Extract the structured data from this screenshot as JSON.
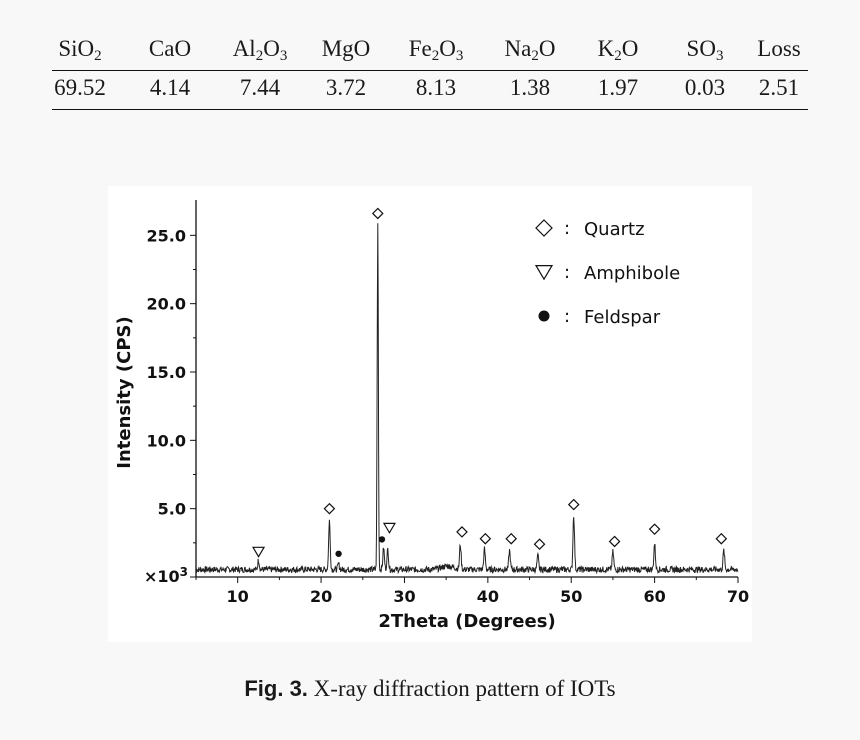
{
  "table": {
    "columns": [
      {
        "base": "SiO",
        "sub1": "2",
        "mid": "",
        "sub2": ""
      },
      {
        "base": "CaO",
        "sub1": "",
        "mid": "",
        "sub2": ""
      },
      {
        "base": "Al",
        "sub1": "2",
        "mid": "O",
        "sub2": "3"
      },
      {
        "base": "MgO",
        "sub1": "",
        "mid": "",
        "sub2": ""
      },
      {
        "base": "Fe",
        "sub1": "2",
        "mid": "O",
        "sub2": "3"
      },
      {
        "base": "Na",
        "sub1": "2",
        "mid": "O",
        "sub2": ""
      },
      {
        "base": "K",
        "sub1": "2",
        "mid": "O",
        "sub2": ""
      },
      {
        "base": "SO",
        "sub1": "3",
        "mid": "",
        "sub2": ""
      },
      {
        "base": "Loss",
        "sub1": "",
        "mid": "",
        "sub2": ""
      }
    ],
    "values": [
      "69.52",
      "4.14",
      "7.44",
      "3.72",
      "8.13",
      "1.38",
      "1.97",
      "0.03",
      "2.51"
    ]
  },
  "chart_data": {
    "type": "line",
    "xlabel": "2Theta (Degrees)",
    "ylabel": "Intensity (CPS)",
    "y_multiplier_label": "×10",
    "y_multiplier_exp": "3",
    "xlim": [
      5,
      70
    ],
    "ylim": [
      0,
      27
    ],
    "x_ticks": [
      "10",
      "20",
      "30",
      "40",
      "50",
      "60",
      "70"
    ],
    "y_ticks": [
      "5.0",
      "10.0",
      "15.0",
      "20.0",
      "25.0"
    ],
    "legend": [
      {
        "symbol": "diamond",
        "label": "Quartz"
      },
      {
        "symbol": "triangle",
        "label": "Amphibole"
      },
      {
        "symbol": "circle",
        "label": "Feldspar"
      }
    ],
    "legend_separator": ":",
    "baseline": 0.5,
    "peaks": [
      {
        "x": 12.5,
        "y": 1.2,
        "phase": "Amphibole"
      },
      {
        "x": 21.0,
        "y": 4.1,
        "phase": "Quartz"
      },
      {
        "x": 22.1,
        "y": 0.9,
        "phase": "Feldspar"
      },
      {
        "x": 26.8,
        "y": 25.9,
        "phase": "Quartz"
      },
      {
        "x": 27.5,
        "y": 2.1,
        "phase": "Feldspar"
      },
      {
        "x": 28.0,
        "y": 2.0,
        "phase": "Amphibole"
      },
      {
        "x": 36.7,
        "y": 2.3,
        "phase": "Quartz"
      },
      {
        "x": 39.6,
        "y": 2.0,
        "phase": "Quartz"
      },
      {
        "x": 42.6,
        "y": 1.9,
        "phase": "Quartz"
      },
      {
        "x": 46.0,
        "y": 1.5,
        "phase": "Quartz"
      },
      {
        "x": 50.3,
        "y": 4.5,
        "phase": "Quartz"
      },
      {
        "x": 55.0,
        "y": 1.8,
        "phase": "Quartz"
      },
      {
        "x": 60.0,
        "y": 2.4,
        "phase": "Quartz"
      },
      {
        "x": 68.3,
        "y": 1.9,
        "phase": "Quartz"
      }
    ],
    "markers": [
      {
        "x": 12.5,
        "y": 1.85,
        "symbol": "triangle"
      },
      {
        "x": 21.0,
        "y": 5.0,
        "symbol": "diamond"
      },
      {
        "x": 22.1,
        "y": 1.7,
        "symbol": "circle"
      },
      {
        "x": 26.8,
        "y": 26.6,
        "symbol": "diamond"
      },
      {
        "x": 27.3,
        "y": 2.75,
        "symbol": "circle"
      },
      {
        "x": 28.2,
        "y": 3.6,
        "symbol": "triangle"
      },
      {
        "x": 36.9,
        "y": 3.3,
        "symbol": "diamond"
      },
      {
        "x": 39.7,
        "y": 2.8,
        "symbol": "diamond"
      },
      {
        "x": 42.8,
        "y": 2.8,
        "symbol": "diamond"
      },
      {
        "x": 46.2,
        "y": 2.4,
        "symbol": "diamond"
      },
      {
        "x": 50.3,
        "y": 5.3,
        "symbol": "diamond"
      },
      {
        "x": 55.2,
        "y": 2.6,
        "symbol": "diamond"
      },
      {
        "x": 60.0,
        "y": 3.5,
        "symbol": "diamond"
      },
      {
        "x": 68.0,
        "y": 2.8,
        "symbol": "diamond"
      }
    ]
  },
  "caption": {
    "fig_label": "Fig. 3.",
    "text": " X-ray diffraction pattern of IOTs"
  }
}
